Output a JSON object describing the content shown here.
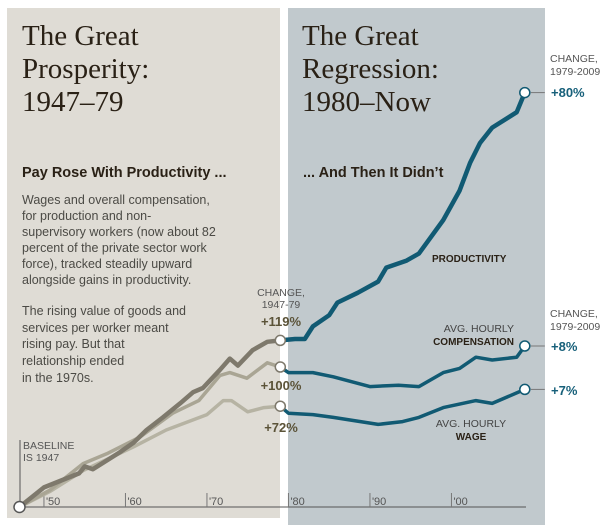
{
  "colors": {
    "left_panel": "#dfdcd5",
    "right_panel": "#c1c9cd",
    "productivity_left": "#7e796c",
    "compensation_left": "#a9a594",
    "wage_left": "#b6b3a3",
    "right_lines": "#115a73",
    "left_change_text": "#5b5338",
    "right_change_text": "#17607a",
    "heading_text": "#2a2116",
    "body_text": "#4b4a45"
  },
  "left": {
    "title_lines": [
      "The Great",
      "Prosperity:",
      "1947–79"
    ],
    "subhead": "Pay Rose With Productivity ...",
    "para1": [
      "Wages and overall compensation,",
      "for production and non-",
      "supervisory workers (now about 82",
      "percent of the private sector work",
      "force), tracked steadily upward",
      "alongside gains in productivity."
    ],
    "para2": [
      "The rising value of goods and",
      "services per worker meant",
      "rising pay. But that",
      "relationship ended",
      "in the 1970s."
    ]
  },
  "right": {
    "title_lines": [
      "The Great",
      "Regression:",
      "1980–Now"
    ],
    "subhead": "... And Then It Didn’t"
  },
  "chart_data": {
    "type": "line",
    "xlabel": "",
    "ylabel": "",
    "xlim": [
      1947,
      2009
    ],
    "ylim": [
      0,
      300
    ],
    "grid": false,
    "baseline_label": [
      "BASELINE",
      "IS 1947"
    ],
    "x_ticks": [
      {
        "value": 1950,
        "label": "'50"
      },
      {
        "value": 1960,
        "label": "'60"
      },
      {
        "value": 1970,
        "label": "'70"
      },
      {
        "value": 1980,
        "label": "'80"
      },
      {
        "value": 1990,
        "label": "'90"
      },
      {
        "value": 2000,
        "label": "'00"
      }
    ],
    "split_year": 1979,
    "change_1947_79_label": [
      "CHANGE,",
      "1947-79"
    ],
    "change_1979_2009_label": [
      "CHANGE,",
      "1979-2009"
    ],
    "series": [
      {
        "name": "PRODUCTIVITY",
        "label_lines": [
          "PRODUCTIVITY"
        ],
        "change_1947_79": "+119%",
        "change_1979_2009": "+80%",
        "points": [
          [
            1947,
            0
          ],
          [
            1950,
            14
          ],
          [
            1954.3,
            24
          ],
          [
            1955,
            29
          ],
          [
            1956,
            27
          ],
          [
            1959.3,
            39
          ],
          [
            1961,
            46
          ],
          [
            1962.6,
            55
          ],
          [
            1964.6,
            64
          ],
          [
            1966.7,
            74
          ],
          [
            1968.3,
            82
          ],
          [
            1969.5,
            85
          ],
          [
            1971.6,
            98
          ],
          [
            1972.8,
            106
          ],
          [
            1973.8,
            101
          ],
          [
            1975.6,
            112
          ],
          [
            1977.4,
            118
          ],
          [
            1979,
            119
          ],
          [
            1980.8,
            120
          ],
          [
            1982,
            120
          ],
          [
            1983,
            129
          ],
          [
            1985,
            137
          ],
          [
            1986,
            146
          ],
          [
            1988.5,
            153
          ],
          [
            1991,
            161
          ],
          [
            1992,
            171
          ],
          [
            1994.5,
            176
          ],
          [
            1996,
            181
          ],
          [
            1997,
            189
          ],
          [
            1999,
            205
          ],
          [
            2001,
            226
          ],
          [
            2002.3,
            246
          ],
          [
            2003.5,
            260
          ],
          [
            2005,
            271
          ],
          [
            2008,
            282
          ],
          [
            2009,
            296
          ]
        ]
      },
      {
        "name": "AVG. HOURLY COMPENSATION",
        "label_lines": [
          "AVG. HOURLY",
          "COMPENSATION"
        ],
        "change_1947_79": "+100%",
        "change_1979_2009": "+8%",
        "points": [
          [
            1947,
            0
          ],
          [
            1950.7,
            12
          ],
          [
            1954.8,
            31
          ],
          [
            1957.7,
            38
          ],
          [
            1961.8,
            50
          ],
          [
            1965.8,
            67
          ],
          [
            1969,
            76
          ],
          [
            1971.6,
            94
          ],
          [
            1972.8,
            96
          ],
          [
            1974.9,
            92
          ],
          [
            1977.4,
            103
          ],
          [
            1979,
            100
          ],
          [
            1980,
            96
          ],
          [
            1983,
            96
          ],
          [
            1985.5,
            93
          ],
          [
            1990,
            86
          ],
          [
            1993.5,
            87
          ],
          [
            1996,
            86
          ],
          [
            1999,
            96
          ],
          [
            2001,
            99
          ],
          [
            2003,
            107
          ],
          [
            2005,
            105
          ],
          [
            2008,
            107
          ],
          [
            2009,
            115
          ]
        ]
      },
      {
        "name": "AVG. HOURLY WAGE",
        "label_lines": [
          "AVG. HOURLY",
          "WAGE"
        ],
        "change_1947_79": "+72%",
        "change_1979_2009": "+7%",
        "points": [
          [
            1947,
            0
          ],
          [
            1950.7,
            11
          ],
          [
            1954.8,
            26
          ],
          [
            1961,
            43
          ],
          [
            1965,
            55
          ],
          [
            1970,
            66
          ],
          [
            1972,
            76
          ],
          [
            1973,
            76
          ],
          [
            1975,
            68
          ],
          [
            1977,
            71
          ],
          [
            1979,
            72
          ],
          [
            1980,
            67
          ],
          [
            1983,
            66
          ],
          [
            1985.5,
            64
          ],
          [
            1991,
            59
          ],
          [
            1994,
            61
          ],
          [
            1996,
            64
          ],
          [
            1999,
            71
          ],
          [
            2003,
            76
          ],
          [
            2005,
            74
          ],
          [
            2007,
            79
          ],
          [
            2009,
            84
          ]
        ]
      }
    ]
  }
}
